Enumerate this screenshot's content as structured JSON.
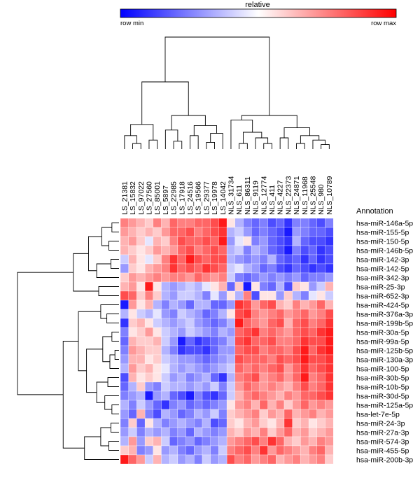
{
  "chart_data": {
    "type": "heatmap",
    "color_scale": {
      "title": "relative",
      "min_label": "row min",
      "max_label": "row max",
      "colors": [
        "#0000ff",
        "#ffffff",
        "#ff0000"
      ],
      "range": [
        -1,
        1
      ]
    },
    "annotation_header": "Annotation",
    "columns": [
      "LS_21381",
      "LS_15832",
      "LS_97022",
      "LS_27560",
      "LS_85001",
      "LS_5897",
      "LS_22985",
      "LS_17918",
      "LS_24516",
      "LS_19566",
      "LS_29377",
      "LS_19978",
      "LS_14042",
      "NLS_31734",
      "NLS_611",
      "NLS_86311",
      "NLS_9119",
      "NLS_12774",
      "NLS_411",
      "NLS_4227",
      "NLS_22373",
      "NLS_24871",
      "NLS_11968",
      "NLS_25548",
      "NLS_980",
      "NLS_10789"
    ],
    "rows": [
      "hsa-miR-146a-5p",
      "hsa-miR-155-5p",
      "hsa-miR-150-5p",
      "hsa-miR-146b-5p",
      "hsa-miR-142-3p",
      "hsa-miR-142-5p",
      "hsa-miR-342-3p",
      "hsa-miR-25-3p",
      "hsa-miR-652-3p",
      "hsa-miR-424-5p",
      "hsa-miR-376a-3p",
      "hsa-miR-199b-5p",
      "hsa-miR-30a-5p",
      "hsa-miR-99a-5p",
      "hsa-miR-125b-5p",
      "hsa-miR-130a-3p",
      "hsa-miR-100-5p",
      "hsa-miR-30b-5p",
      "hsa-miR-10b-5p",
      "hsa-miR-30d-5p",
      "hsa-miR-125a-5p",
      "hsa-let-7e-5p",
      "hsa-miR-24-3p",
      "hsa-miR-27a-3p",
      "hsa-miR-574-3p",
      "hsa-miR-455-5p",
      "hsa-miR-200b-3p"
    ],
    "values": [
      [
        0.5,
        0.4,
        0.3,
        0.2,
        0.5,
        0.3,
        0.6,
        0.5,
        0.5,
        0.6,
        0.6,
        0.7,
        0.9,
        0.1,
        -0.3,
        -0.5,
        -0.6,
        -0.5,
        -0.7,
        -0.6,
        -0.8,
        -0.5,
        -0.5,
        -0.6,
        -0.7,
        -0.5
      ],
      [
        0.4,
        0.3,
        0.2,
        0.3,
        0.2,
        0.4,
        0.6,
        0.6,
        0.7,
        0.5,
        0.6,
        0.7,
        0.8,
        -0.3,
        -0.2,
        -0.4,
        -0.6,
        -0.5,
        -0.6,
        -0.7,
        -0.9,
        -0.4,
        -0.5,
        -0.6,
        -0.6,
        -0.7
      ],
      [
        0.3,
        0.4,
        0.2,
        -0.1,
        0.3,
        0.2,
        0.5,
        0.7,
        0.6,
        0.6,
        0.7,
        0.6,
        0.9,
        -0.4,
        -0.1,
        0.1,
        -0.5,
        -0.4,
        -0.6,
        -0.7,
        -0.8,
        -0.3,
        -0.6,
        -0.7,
        -0.7,
        -0.8
      ],
      [
        0.3,
        0.2,
        0.1,
        0.2,
        0.4,
        0.3,
        0.4,
        0.6,
        0.7,
        0.5,
        0.6,
        0.7,
        0.6,
        -0.3,
        -0.2,
        -0.5,
        -0.3,
        -0.4,
        -0.6,
        -0.7,
        -0.9,
        -0.5,
        -0.7,
        -0.6,
        -0.8,
        -0.7
      ],
      [
        -0.2,
        0.3,
        0.1,
        -0.1,
        0.2,
        0.5,
        0.8,
        0.6,
        0.9,
        0.7,
        0.6,
        0.7,
        0.7,
        -0.3,
        -0.4,
        -0.5,
        -0.4,
        -0.5,
        -0.3,
        -0.6,
        -0.7,
        -0.6,
        -0.8,
        -0.6,
        -0.8,
        -0.7
      ],
      [
        -0.4,
        0.2,
        0.1,
        0.3,
        0.4,
        0.5,
        0.8,
        0.6,
        0.7,
        0.6,
        0.8,
        0.7,
        0.6,
        -0.2,
        -0.1,
        -0.3,
        -0.4,
        -0.6,
        -0.5,
        -0.7,
        -0.8,
        -0.6,
        -0.7,
        -0.8,
        -0.7,
        -0.8
      ],
      [
        0.2,
        0.4,
        0.3,
        0.4,
        0.5,
        0.4,
        0.5,
        0.5,
        0.4,
        0.6,
        0.5,
        0.4,
        0.5,
        -0.2,
        -0.5,
        -0.6,
        -0.5,
        -0.4,
        -0.5,
        -0.4,
        -0.5,
        -0.4,
        -0.6,
        -0.5,
        -0.5,
        -0.4
      ],
      [
        0.3,
        0.4,
        0.1,
        0.9,
        0.1,
        -0.3,
        -0.4,
        -0.3,
        -0.2,
        -0.3,
        -0.1,
        0.1,
        0.3,
        -0.6,
        0.2,
        -0.9,
        0.1,
        -0.5,
        -0.6,
        -0.3,
        -0.7,
        0.2,
        0.1,
        -0.4,
        -0.2,
        0.3
      ],
      [
        0.7,
        0.6,
        0.2,
        0.5,
        0.2,
        -0.3,
        -0.4,
        -0.2,
        -0.2,
        -0.3,
        -0.5,
        -0.1,
        -0.4,
        0.1,
        -0.3,
        0.5,
        -0.7,
        0.1,
        0.1,
        -0.4,
        0.2,
        -0.3,
        -0.5,
        -0.1,
        0.1,
        -0.2
      ],
      [
        -0.9,
        0.4,
        0.1,
        0.3,
        -0.3,
        -0.5,
        -0.3,
        -0.4,
        -0.6,
        -0.3,
        -0.3,
        -0.6,
        -0.6,
        -0.4,
        0.8,
        0.7,
        0.4,
        0.6,
        0.7,
        0.3,
        0.2,
        0.5,
        0.3,
        0.4,
        0.6,
        0.3
      ],
      [
        -0.3,
        0.1,
        -0.2,
        -0.3,
        -0.1,
        -0.4,
        -0.5,
        -0.2,
        -0.3,
        -0.4,
        -0.6,
        -0.5,
        -0.3,
        0.1,
        0.7,
        0.8,
        0.5,
        0.4,
        0.5,
        0.6,
        0.4,
        0.5,
        0.6,
        0.4,
        0.5,
        0.7
      ],
      [
        -0.8,
        0.2,
        0.3,
        0.1,
        -0.2,
        -0.3,
        -0.4,
        -0.3,
        -0.2,
        -0.4,
        -0.5,
        -0.6,
        -0.5,
        -0.3,
        0.9,
        0.6,
        0.5,
        0.4,
        0.6,
        0.7,
        0.3,
        0.6,
        0.7,
        0.5,
        0.6,
        0.8
      ],
      [
        -0.5,
        0.1,
        0.2,
        0.4,
        0.1,
        -0.2,
        -0.3,
        -0.4,
        -0.2,
        -0.3,
        -0.4,
        -0.5,
        -0.3,
        -0.4,
        0.6,
        0.7,
        0.8,
        0.5,
        0.6,
        0.5,
        0.4,
        0.6,
        0.7,
        0.6,
        0.8,
        0.9
      ],
      [
        -0.6,
        0.3,
        0.2,
        0.2,
        0.3,
        -0.2,
        -0.4,
        -0.9,
        -0.6,
        -0.8,
        -0.7,
        -0.6,
        -0.5,
        -0.3,
        0.7,
        0.8,
        0.6,
        0.6,
        0.7,
        0.5,
        0.5,
        0.6,
        0.8,
        0.7,
        0.7,
        0.9
      ],
      [
        -0.5,
        0.4,
        0.3,
        0.2,
        0.2,
        -0.3,
        -0.5,
        -0.8,
        -0.7,
        -0.7,
        -0.8,
        -0.6,
        -0.4,
        -0.4,
        0.6,
        0.7,
        0.7,
        0.5,
        0.6,
        0.6,
        0.5,
        0.7,
        0.9,
        0.6,
        0.8,
        0.9
      ],
      [
        -0.4,
        0.3,
        0.3,
        0.1,
        0.2,
        -0.2,
        -0.3,
        -0.4,
        -0.4,
        -0.5,
        -0.6,
        -0.5,
        -0.4,
        -0.3,
        0.7,
        0.6,
        0.6,
        0.6,
        0.5,
        0.7,
        0.6,
        0.7,
        0.9,
        0.7,
        0.7,
        0.8
      ],
      [
        -0.3,
        0.4,
        0.2,
        0.3,
        0.1,
        -0.1,
        -0.3,
        -0.4,
        -0.3,
        -0.4,
        -0.5,
        -0.4,
        -0.3,
        -0.2,
        0.6,
        0.5,
        0.6,
        0.5,
        0.6,
        0.7,
        0.4,
        0.6,
        0.8,
        0.6,
        0.7,
        0.8
      ],
      [
        -0.7,
        0.3,
        0.1,
        0.2,
        0.1,
        -0.2,
        -0.4,
        -0.3,
        -0.5,
        -0.4,
        -0.3,
        -0.6,
        -0.8,
        -0.3,
        0.5,
        0.6,
        0.7,
        0.4,
        0.5,
        0.6,
        0.4,
        0.6,
        0.9,
        0.5,
        0.6,
        0.8
      ],
      [
        -0.6,
        -0.3,
        0.2,
        -0.4,
        -0.5,
        -0.2,
        -0.3,
        -0.3,
        -0.4,
        -0.3,
        -0.4,
        -0.2,
        -0.5,
        -0.2,
        0.4,
        0.6,
        0.5,
        0.4,
        0.5,
        0.4,
        0.3,
        0.5,
        0.7,
        0.5,
        0.6,
        0.8
      ],
      [
        -0.5,
        -0.4,
        -0.3,
        -0.9,
        -0.4,
        -0.3,
        -0.6,
        -0.7,
        -0.9,
        -0.5,
        -0.7,
        -0.8,
        -0.6,
        -0.2,
        0.3,
        0.5,
        0.6,
        0.5,
        0.4,
        0.3,
        0.5,
        0.4,
        0.6,
        0.6,
        0.7,
        0.8
      ],
      [
        -0.3,
        -0.5,
        -0.2,
        -0.4,
        -0.6,
        -0.8,
        -0.5,
        -0.4,
        -0.6,
        -0.5,
        -0.6,
        -0.5,
        -0.4,
        0.1,
        0.4,
        0.5,
        0.3,
        0.6,
        0.3,
        0.5,
        0.2,
        0.4,
        0.6,
        0.4,
        0.5,
        0.4
      ],
      [
        -0.4,
        -0.6,
        0.3,
        -0.5,
        -0.7,
        -0.3,
        -0.4,
        -0.6,
        -0.5,
        -0.3,
        -0.4,
        -0.2,
        -0.5,
        0.2,
        0.3,
        0.4,
        0.5,
        0.2,
        0.4,
        0.3,
        0.6,
        0.3,
        0.4,
        0.5,
        0.3,
        0.4
      ],
      [
        -0.5,
        0.2,
        -0.6,
        0.1,
        -0.3,
        -0.5,
        -0.4,
        -0.3,
        -0.4,
        -0.5,
        -0.3,
        -0.7,
        -0.6,
        0.2,
        0.1,
        0.3,
        0.4,
        0.2,
        0.1,
        0.3,
        0.8,
        0.2,
        0.3,
        0.1,
        0.2,
        0.3
      ],
      [
        -0.4,
        -0.2,
        -0.5,
        -0.3,
        -0.4,
        -0.3,
        -0.5,
        -0.4,
        -0.6,
        -0.3,
        -0.4,
        -0.5,
        -0.4,
        0.3,
        0.2,
        0.4,
        0.3,
        0.5,
        0.2,
        0.4,
        0.6,
        0.3,
        0.4,
        0.2,
        0.3,
        0.4
      ],
      [
        -0.3,
        0.4,
        -0.4,
        0.2,
        0.3,
        -0.2,
        -0.6,
        -0.5,
        -0.4,
        -0.6,
        -0.5,
        -0.4,
        -0.3,
        0.4,
        0.5,
        0.6,
        0.7,
        0.5,
        0.8,
        0.6,
        0.3,
        0.2,
        0.4,
        0.3,
        0.5,
        0.4
      ],
      [
        0.2,
        0.3,
        -0.5,
        -0.4,
        0.1,
        -0.4,
        -0.3,
        -0.5,
        -0.6,
        -0.4,
        -0.3,
        -0.5,
        -0.2,
        0.5,
        0.6,
        0.7,
        0.5,
        0.8,
        0.4,
        0.6,
        0.5,
        0.4,
        0.3,
        0.5,
        0.6,
        0.3
      ],
      [
        0.9,
        0.6,
        0.4,
        -0.2,
        0.3,
        -0.3,
        -0.2,
        -0.4,
        -0.3,
        -0.5,
        -0.2,
        -0.4,
        -0.3,
        0.7,
        0.5,
        0.6,
        0.4,
        0.5,
        0.6,
        0.3,
        0.4,
        0.5,
        0.3,
        0.4,
        0.5,
        0.2
      ]
    ]
  }
}
